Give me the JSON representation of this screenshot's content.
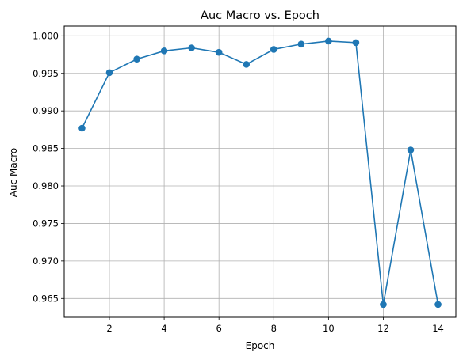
{
  "chart_data": {
    "type": "line",
    "title": "Auc Macro vs. Epoch",
    "xlabel": "Epoch",
    "ylabel": "Auc Macro",
    "xlim": [
      0.35,
      14.65
    ],
    "ylim": [
      0.9625,
      1.0013
    ],
    "xticks": [
      2,
      4,
      6,
      8,
      10,
      12,
      14
    ],
    "yticks": [
      0.965,
      0.97,
      0.975,
      0.98,
      0.985,
      0.99,
      0.995,
      1.0
    ],
    "ytick_labels": [
      "0.965",
      "0.970",
      "0.975",
      "0.980",
      "0.985",
      "0.990",
      "0.995",
      "1.000"
    ],
    "grid": true,
    "color": "#1f77b4",
    "series": [
      {
        "x": [
          1,
          2,
          3,
          4,
          5,
          6,
          7,
          8,
          9,
          10,
          11,
          12,
          13,
          14
        ],
        "values": [
          0.9877,
          0.9951,
          0.9969,
          0.998,
          0.9984,
          0.9978,
          0.9962,
          0.9982,
          0.9989,
          0.9993,
          0.9991,
          0.9642,
          0.9848,
          0.9642
        ]
      }
    ]
  }
}
